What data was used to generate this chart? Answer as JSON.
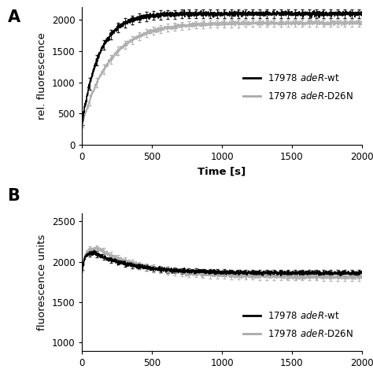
{
  "panel_A": {
    "ylabel": "rel. fluorescence",
    "xlabel": "Time [s]",
    "xlim": [
      0,
      2000
    ],
    "ylim": [
      0,
      2200
    ],
    "xticks": [
      0,
      500,
      1000,
      1500,
      2000
    ],
    "yticks": [
      0,
      500,
      1000,
      1500,
      2000
    ],
    "wt_color": "#000000",
    "d26n_color": "#aaaaaa",
    "wt_label": "17978 $adeR$-wt",
    "d26n_label": "17978 $adeR$-D26N",
    "wt_plateau": 2100,
    "d26n_plateau": 1950,
    "wt_start": 350,
    "d26n_start": 320,
    "wt_k": 0.008,
    "d26n_k": 0.005,
    "wt_err": 80,
    "d26n_err": 70
  },
  "panel_B": {
    "ylabel": "fluorescence units",
    "xlim": [
      0,
      2000
    ],
    "ylim": [
      900,
      2600
    ],
    "xticks": [
      0,
      500,
      1000,
      1500,
      2000
    ],
    "yticks": [
      1000,
      1500,
      2000,
      2500
    ],
    "wt_color": "#000000",
    "d26n_color": "#aaaaaa",
    "wt_label": "17978 $adeR$-wt",
    "d26n_label": "17978 $adeR$-D26N",
    "wt_start": 1870,
    "d26n_start": 1870,
    "wt_peak": 2110,
    "d26n_peak": 2160,
    "wt_plateau": 1860,
    "d26n_plateau": 1810,
    "peak_time_wt": 90,
    "peak_time_d26n": 120,
    "rise_k": 0.06,
    "decay_k_wt": 0.0035,
    "decay_k_d26n": 0.003,
    "wt_err": 35,
    "d26n_err": 45
  },
  "legend_fontsize": 8.5,
  "label_fontsize": 9.5,
  "tick_fontsize": 8.5,
  "panel_label_fontsize": 15,
  "line_width": 1.2,
  "eb_alpha": 0.25,
  "n_errorbar": 40,
  "errorbar_capsize": 1.5,
  "errorbar_lw": 0.7
}
